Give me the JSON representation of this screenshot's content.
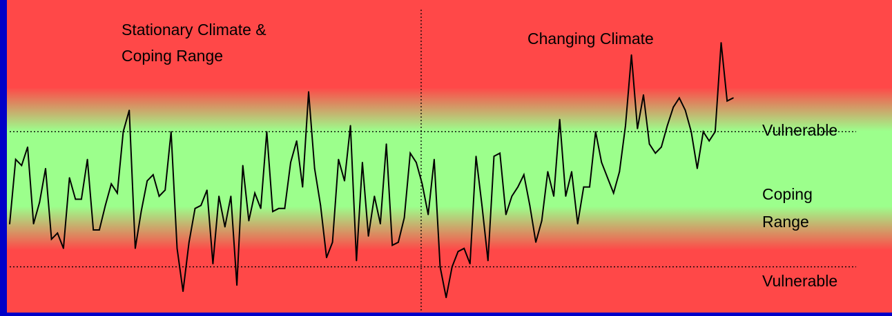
{
  "chart_data": {
    "type": "line",
    "annotations": {
      "left_period": [
        "Stationary Climate &",
        "Coping Range"
      ],
      "right_period": "Changing Climate",
      "upper_threshold_label": "Vulnerable",
      "coping_label": [
        "Coping",
        "Range"
      ],
      "lower_threshold_label": "Vulnerable"
    },
    "grid": false,
    "legend": "none",
    "ylim": [
      0,
      100
    ],
    "thresholds": {
      "upper": 58,
      "lower": 14
    },
    "period_split_index": 86,
    "series": [
      {
        "values": [
          28,
          49,
          47,
          53,
          28,
          35,
          46,
          23,
          25,
          20,
          43,
          36,
          36,
          49,
          26,
          26,
          34,
          41,
          38,
          58,
          65,
          20,
          32,
          42,
          44,
          37,
          39,
          58,
          20,
          6,
          22,
          33,
          34,
          39,
          15,
          37,
          27,
          37,
          8,
          47,
          29,
          38,
          33,
          58,
          32,
          33,
          33,
          48,
          55,
          40,
          71,
          46,
          34,
          17,
          22,
          49,
          42,
          60,
          16,
          48,
          24,
          37,
          28,
          54,
          21,
          22,
          30,
          51,
          48,
          41,
          31,
          49,
          14,
          4,
          14,
          19,
          20,
          15,
          50,
          34,
          16,
          50,
          51,
          31,
          37,
          40,
          44,
          34,
          22,
          29,
          45,
          37,
          62,
          37,
          45,
          28,
          40,
          40,
          58,
          48,
          43,
          38,
          45,
          60,
          83,
          59,
          70,
          54,
          51,
          53,
          60,
          66,
          69,
          65,
          58,
          46,
          58,
          55,
          58,
          87,
          68,
          69
        ]
      }
    ]
  },
  "colors": {
    "background_frame": "#0000c8",
    "hot_zone": "#ff4848",
    "coping_zone": "#9cff8c",
    "line": "#000000"
  }
}
